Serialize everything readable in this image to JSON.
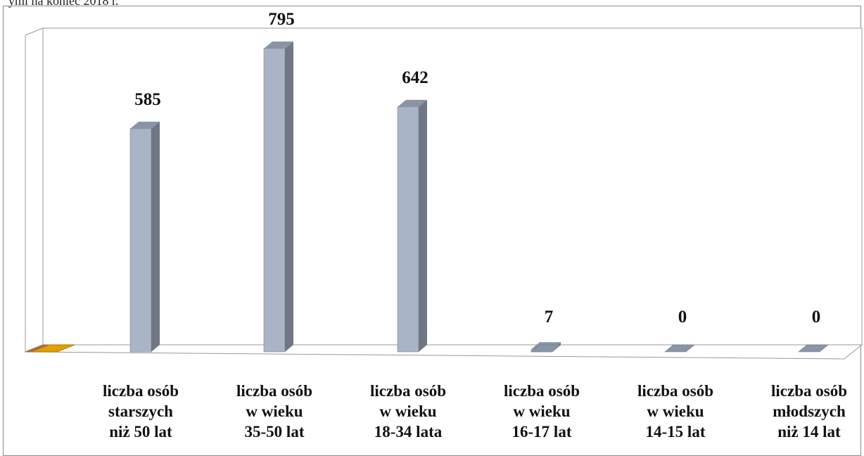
{
  "caption": "ymi na koniec 2018 r.",
  "chart_data": {
    "type": "bar",
    "categories": [
      [
        "liczba osób",
        "starszych",
        "niż 50 lat"
      ],
      [
        "liczba osób",
        "w wieku",
        "35-50 lat"
      ],
      [
        "liczba osób",
        "w wieku",
        "18-34 lata"
      ],
      [
        "liczba osób",
        "w wieku",
        "16-17 lat"
      ],
      [
        "liczba osób",
        "w wieku",
        "14-15 lat"
      ],
      [
        "liczba osób",
        "młodszych",
        "niż 14 lat"
      ]
    ],
    "values": [
      585,
      795,
      642,
      7,
      0,
      0
    ],
    "value_labels": [
      "585",
      "795",
      "642",
      "7",
      "0",
      "0"
    ],
    "ylim": [
      0,
      830
    ],
    "grid": false,
    "legend": "none",
    "colors": {
      "bar_front": "#a9b4c6",
      "bar_side": "#6f7684",
      "bar_top": "#8995a7",
      "floor_marker": "#e0a000",
      "wall": "#999999"
    }
  }
}
